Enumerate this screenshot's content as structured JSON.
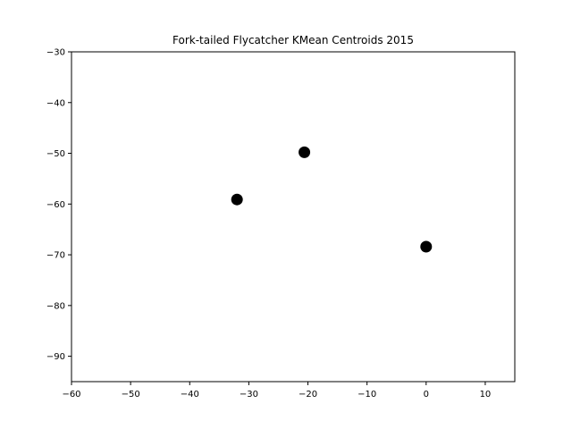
{
  "chart_data": {
    "type": "scatter",
    "title": "Fork-tailed Flycatcher KMean Centroids 2015",
    "xlabel": "",
    "ylabel": "",
    "xlim": [
      -60,
      15
    ],
    "ylim": [
      -95,
      -30
    ],
    "xticks": [
      -60,
      -50,
      -40,
      -30,
      -20,
      -10,
      0,
      10
    ],
    "yticks": [
      -30,
      -40,
      -50,
      -60,
      -70,
      -80,
      -90
    ],
    "xtick_labels": [
      "−60",
      "−50",
      "−40",
      "−30",
      "−20",
      "−10",
      "0",
      "10"
    ],
    "ytick_labels": [
      "−30",
      "−40",
      "−50",
      "−60",
      "−70",
      "−80",
      "−90"
    ],
    "grid": false,
    "marker_color": "#000000",
    "points": [
      {
        "x": -20.6,
        "y": -49.8
      },
      {
        "x": -32.0,
        "y": -59.1
      },
      {
        "x": 0.0,
        "y": -68.4
      }
    ]
  }
}
